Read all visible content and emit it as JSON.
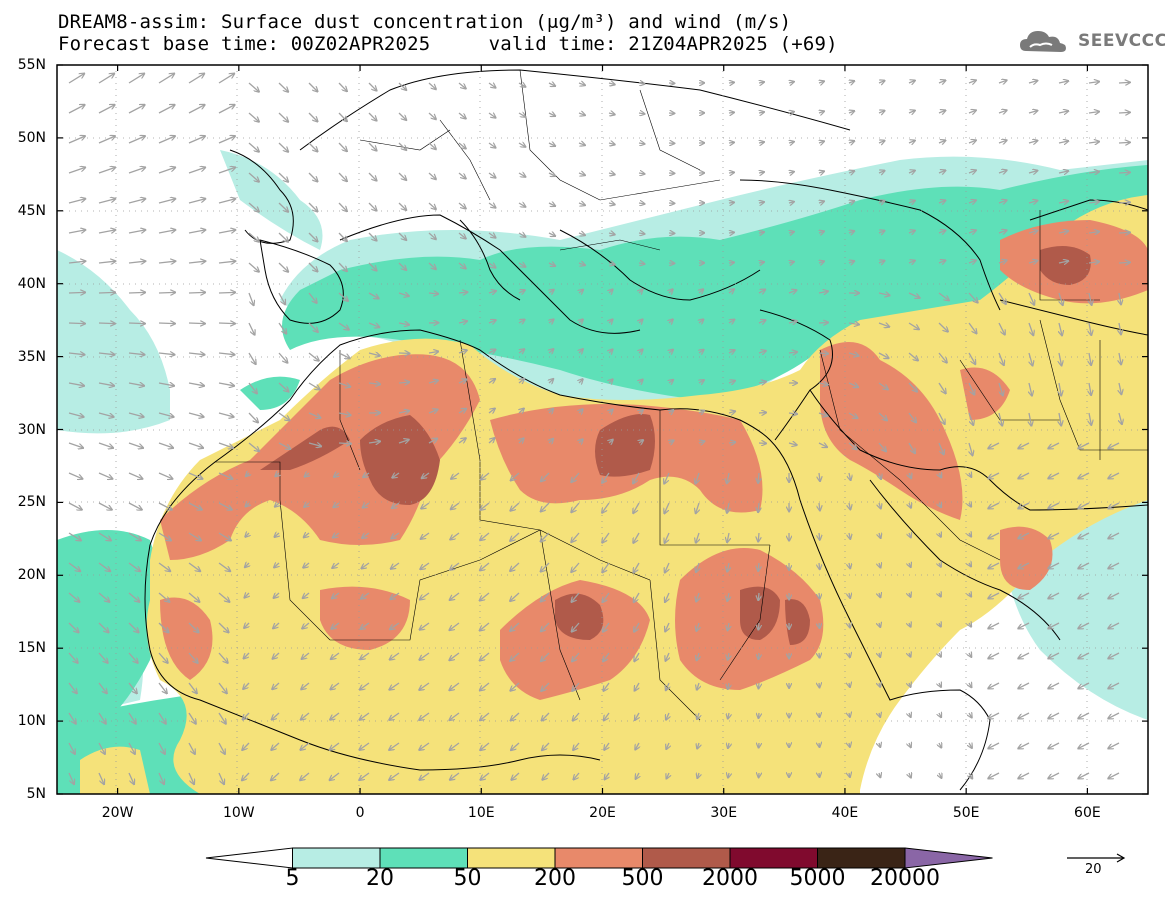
{
  "header": {
    "line1": "DREAM8-assim: Surface dust concentration (μg/m³) and wind (m/s)",
    "line2": "Forecast base time: 00Z02APR2025     valid time: 21Z04APR2025 (+69)"
  },
  "logo": {
    "text": "SEEVCCC",
    "icon": "cloud-icon"
  },
  "axes": {
    "lat_labels": [
      "55N",
      "50N",
      "45N",
      "40N",
      "35N",
      "30N",
      "25N",
      "20N",
      "15N",
      "10N",
      "5N"
    ],
    "lon_labels": [
      "20W",
      "10W",
      "0",
      "10E",
      "20E",
      "30E",
      "40E",
      "50E",
      "60E"
    ],
    "lon_range": [
      -25,
      65
    ],
    "lat_range": [
      5,
      55
    ]
  },
  "colorbar": {
    "labels": [
      "5",
      "20",
      "50",
      "200",
      "500",
      "2000",
      "5000",
      "20000"
    ],
    "colors": [
      "#ffffff",
      "#b7ede4",
      "#5ee0b8",
      "#f5e27a",
      "#e8896a",
      "#b05a4a",
      "#800a2e",
      "#3a2416",
      "#8a66a6"
    ]
  },
  "wind_reference": {
    "label": "20",
    "icon": "arrow-right-icon"
  },
  "palette": {
    "ocean": "#ffffff",
    "border": "#000000",
    "wind_arrow": "#a3a3a3"
  }
}
